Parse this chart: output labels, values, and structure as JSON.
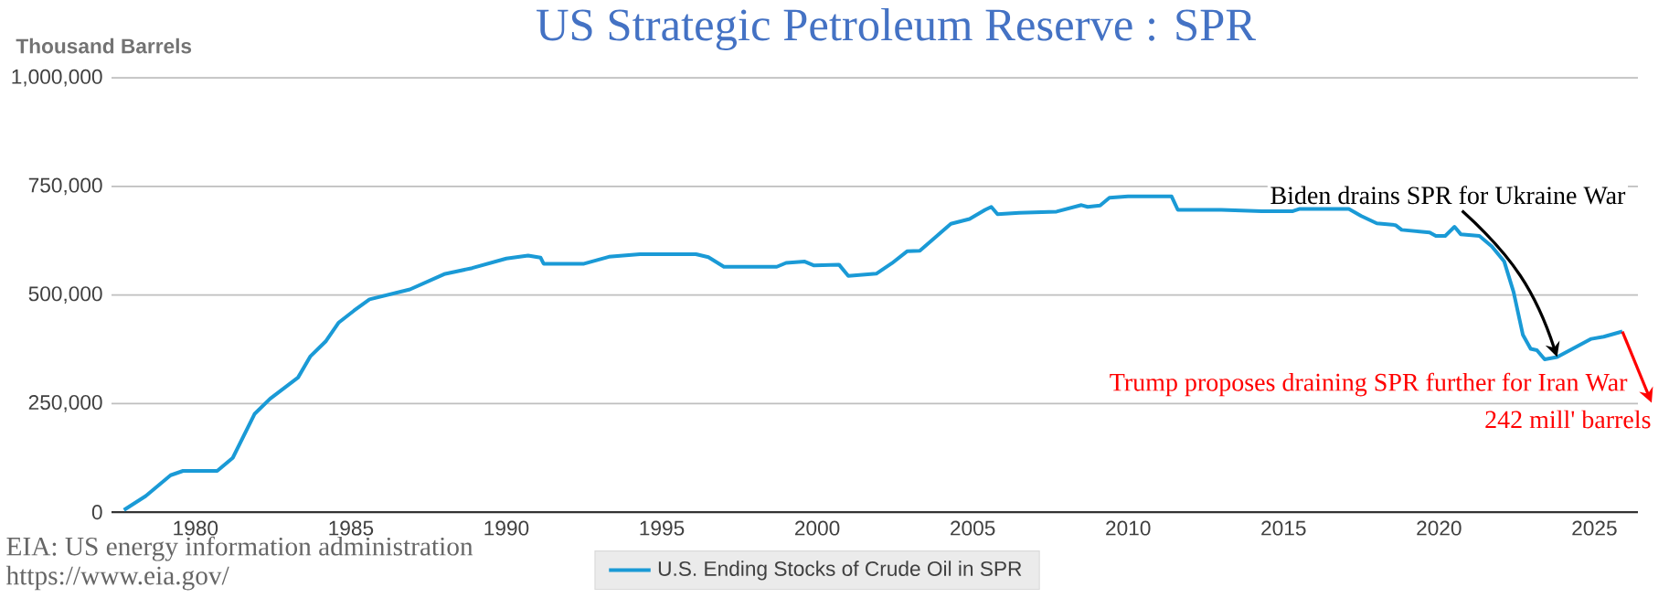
{
  "chart_data": {
    "type": "line",
    "title": "US Strategic Petroleum Reserve : SPR",
    "ylabel": "Thousand Barrels",
    "xlim": [
      1977.3,
      2026.4
    ],
    "ylim": [
      0,
      1000000
    ],
    "xticks": [
      1980,
      1985,
      1990,
      1995,
      2000,
      2005,
      2010,
      2015,
      2020,
      2025
    ],
    "yticks": [
      {
        "value": 0,
        "label": "0"
      },
      {
        "value": 250000,
        "label": "250,000"
      },
      {
        "value": 500000,
        "label": "500,000"
      },
      {
        "value": 750000,
        "label": "750,000"
      },
      {
        "value": 1000000,
        "label": "1,000,000"
      }
    ],
    "grid": "y",
    "legend": "bottom",
    "series": [
      {
        "name": "U.S. Ending Stocks of Crude Oil in SPR",
        "color": "#1a9ad6",
        "x": [
          1977.7,
          1978.4,
          1979.2,
          1979.6,
          1980.7,
          1981.2,
          1981.9,
          1982.4,
          1983.3,
          1983.7,
          1984.2,
          1984.6,
          1985.1,
          1985.6,
          1986.9,
          1988.0,
          1988.9,
          1990.0,
          1990.7,
          1991.1,
          1991.2,
          1992.5,
          1993.3,
          1994.3,
          1996.1,
          1996.5,
          1997.0,
          1998.7,
          1999.0,
          1999.6,
          1999.9,
          2000.7,
          2001.0,
          2001.9,
          2002.4,
          2002.9,
          2003.3,
          2003.8,
          2004.3,
          2004.9,
          2005.4,
          2005.6,
          2005.8,
          2006.5,
          2007.7,
          2008.5,
          2008.7,
          2009.1,
          2009.4,
          2010.0,
          2011.4,
          2011.6,
          2013.0,
          2014.3,
          2015.3,
          2015.5,
          2017.1,
          2017.5,
          2018.0,
          2018.6,
          2018.8,
          2019.7,
          2019.9,
          2020.2,
          2020.5,
          2020.7,
          2021.3,
          2021.7,
          2022.1,
          2022.4,
          2022.7,
          2022.95,
          2023.15,
          2023.4,
          2023.8,
          2024.9,
          2025.3,
          2025.9
        ],
        "values": [
          5000,
          37000,
          85000,
          95000,
          95000,
          125000,
          226000,
          261000,
          310000,
          359000,
          394000,
          436000,
          464000,
          490000,
          513000,
          548000,
          562000,
          584000,
          591000,
          586000,
          572000,
          572000,
          588000,
          594000,
          594000,
          587000,
          565000,
          565000,
          574000,
          577000,
          568000,
          570000,
          544000,
          549000,
          573000,
          601000,
          602000,
          633000,
          664000,
          675000,
          696000,
          703000,
          686000,
          689000,
          692000,
          707000,
          703000,
          706000,
          724000,
          727000,
          727000,
          696000,
          696000,
          693000,
          693000,
          698000,
          698000,
          682000,
          665000,
          661000,
          650000,
          644000,
          636000,
          636000,
          657000,
          640000,
          636000,
          612000,
          577000,
          507000,
          408000,
          376000,
          373000,
          352000,
          357000,
          399000,
          404000,
          416000
        ]
      }
    ],
    "annotations": [
      {
        "text": "Biden drains SPR for Ukraine War",
        "x": 2023.8,
        "y": 357000
      },
      {
        "text": "Trump proposes draining SPR further for Iran War",
        "x": 2025.9,
        "y": 416000
      },
      "242 mill' barrels",
      "EIA: US energy information administration",
      "https://www.eia.gov/"
    ]
  }
}
